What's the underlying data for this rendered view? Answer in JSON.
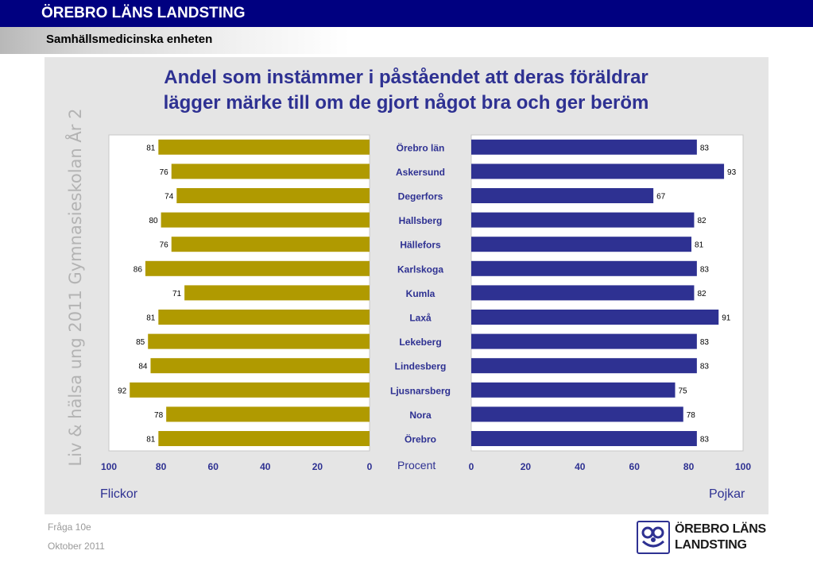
{
  "header": {
    "org_title": "ÖREBRO LÄNS LANDSTING",
    "unit_name": "Samhällsmedicinska enheten",
    "bar_color": "#000080"
  },
  "side_text": "Liv & hälsa ung 2011 Gymnasieskolan År 2",
  "chart_data": {
    "type": "bar",
    "orientation": "horizontal-butterfly",
    "title": [
      "Andel som instämmer i påståendet att deras föräldrar",
      "lägger märke till om de gjort något bra och ger beröm"
    ],
    "categories": [
      "Örebro län",
      "Askersund",
      "Degerfors",
      "Hallsberg",
      "Hällefors",
      "Karlskoga",
      "Kumla",
      "Laxå",
      "Lekeberg",
      "Lindesberg",
      "Ljusnarsberg",
      "Nora",
      "Örebro"
    ],
    "series": [
      {
        "name": "Flickor",
        "color": "#b09a00",
        "values": [
          81,
          76,
          74,
          80,
          76,
          86,
          71,
          81,
          85,
          84,
          92,
          78,
          81
        ]
      },
      {
        "name": "Pojkar",
        "color": "#2e3192",
        "values": [
          83,
          93,
          67,
          82,
          81,
          83,
          82,
          91,
          83,
          83,
          75,
          78,
          83
        ]
      }
    ],
    "x_ticks": [
      0,
      20,
      40,
      60,
      80,
      100
    ],
    "xlim": [
      0,
      100
    ],
    "xlabel": "Procent",
    "grid": false
  },
  "footer": {
    "question": "Fråga 10e",
    "date": "Oktober 2011"
  },
  "logo": {
    "line1": "ÖREBRO LÄNS",
    "line2": "LANDSTING"
  }
}
